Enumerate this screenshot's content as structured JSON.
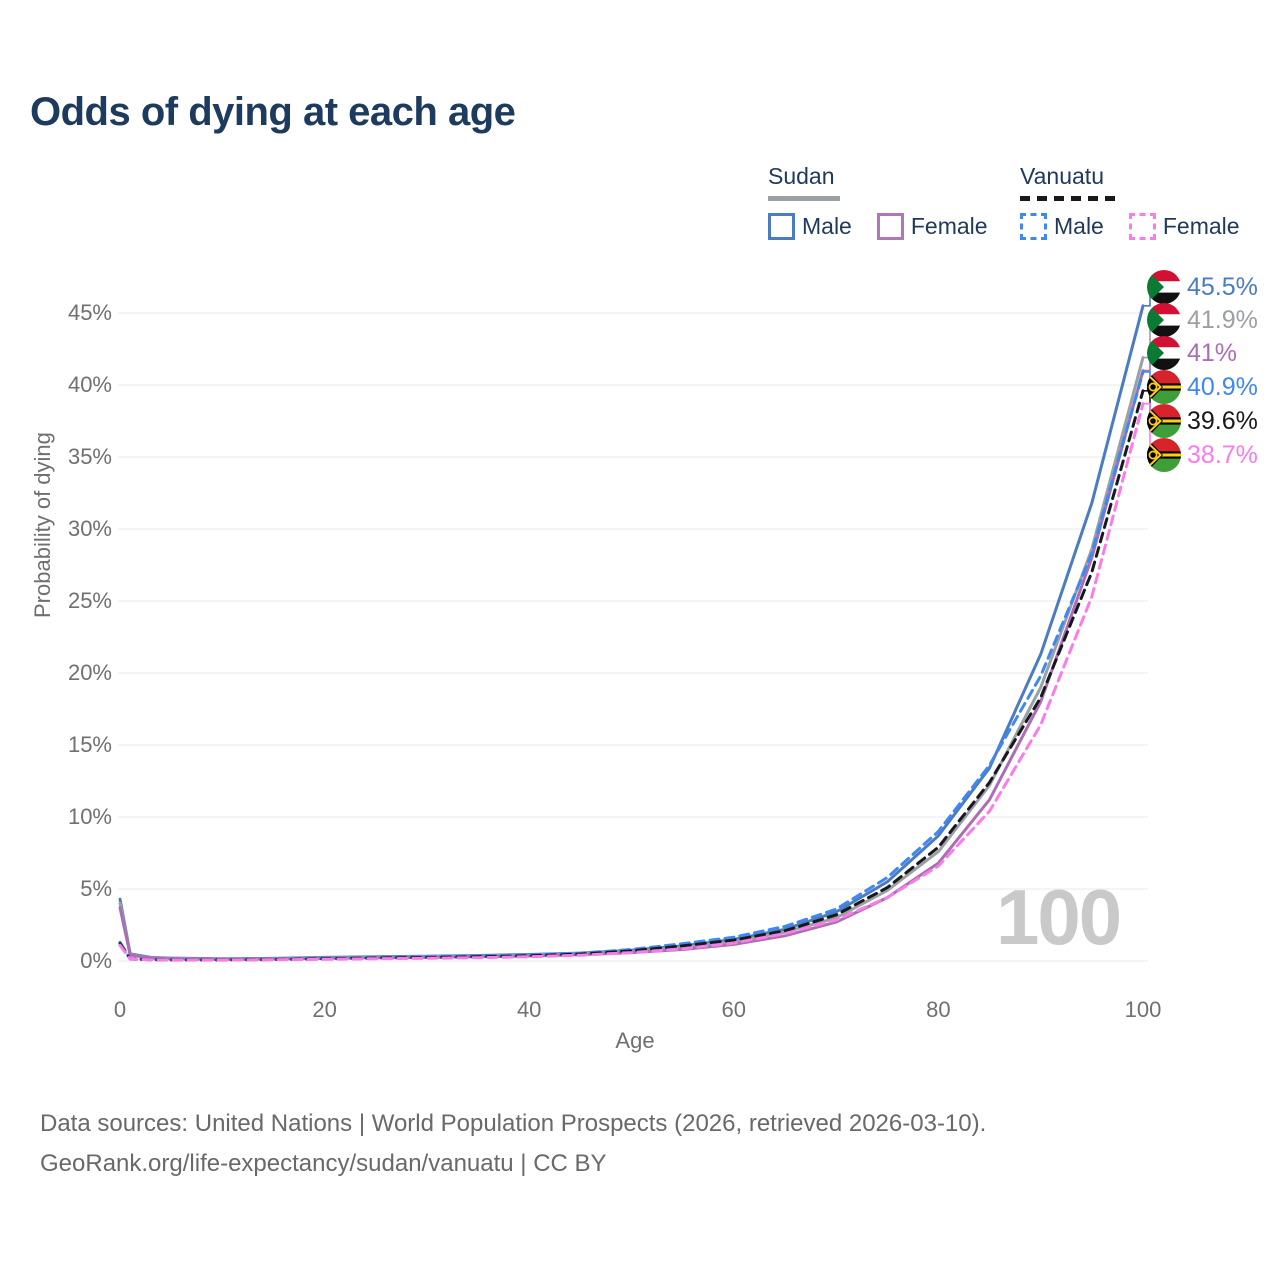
{
  "title": "Odds of dying at each age",
  "watermark": "100",
  "legend": {
    "groups": [
      {
        "name": "Sudan",
        "line_style": "solid",
        "underline_color": "#9aa0a6",
        "items": [
          {
            "label": "Male",
            "color": "#4b7bc0"
          },
          {
            "label": "Female",
            "color": "#b175ba"
          }
        ]
      },
      {
        "name": "Vanuatu",
        "line_style": "dashed",
        "underline_color": "#17191d",
        "items": [
          {
            "label": "Male",
            "color": "#3f88f2"
          },
          {
            "label": "Female",
            "color": "#f97ce8"
          }
        ]
      }
    ]
  },
  "footer": {
    "line1": "Data sources: United Nations | World Population Prospects (2026, retrieved 2026-03-10).",
    "line2": "GeoRank.org/life-expectancy/sudan/vanuatu | CC BY"
  },
  "chart_data": {
    "type": "line",
    "title": "Odds of dying at each age",
    "xlabel": "Age",
    "ylabel": "Probability of dying",
    "xlim": [
      0,
      100
    ],
    "ylim": [
      0,
      48
    ],
    "grid": "horizontal",
    "legend_position": "top-right",
    "xticks": [
      0,
      20,
      40,
      60,
      80,
      100
    ],
    "yticks": [
      0,
      5,
      10,
      15,
      20,
      25,
      30,
      35,
      40,
      45
    ],
    "ytick_labels": [
      "0%",
      "5%",
      "10%",
      "15%",
      "20%",
      "25%",
      "30%",
      "35%",
      "40%",
      "45%"
    ],
    "x_ages": [
      0,
      1,
      3,
      5,
      10,
      15,
      20,
      25,
      30,
      35,
      40,
      45,
      50,
      55,
      60,
      65,
      70,
      75,
      80,
      85,
      90,
      95,
      100
    ],
    "series": [
      {
        "key": "sudan-male",
        "name": "Sudan Male",
        "country": "Sudan",
        "sex": "Male",
        "color": "#4b7bc0",
        "dash": "solid",
        "flag": "sudan-flag",
        "end_label": "45.5%",
        "values": [
          4.3,
          0.5,
          0.25,
          0.2,
          0.15,
          0.18,
          0.25,
          0.3,
          0.33,
          0.38,
          0.45,
          0.55,
          0.75,
          1.05,
          1.5,
          2.2,
          3.4,
          5.5,
          8.7,
          13.4,
          21.3,
          31.8,
          45.5
        ]
      },
      {
        "key": "sudan",
        "name": "Sudan",
        "country": "Sudan",
        "sex": "Both",
        "color": "#9aa0a6",
        "dash": "solid",
        "flag": "sudan-flag",
        "end_label": "41.9%",
        "values": [
          4.0,
          0.45,
          0.22,
          0.18,
          0.13,
          0.16,
          0.21,
          0.26,
          0.29,
          0.33,
          0.4,
          0.5,
          0.66,
          0.92,
          1.35,
          2.0,
          3.0,
          4.9,
          7.6,
          12.2,
          19.0,
          28.6,
          41.9
        ]
      },
      {
        "key": "sudan-female",
        "name": "Sudan Female",
        "country": "Sudan",
        "sex": "Female",
        "color": "#ab6db4",
        "dash": "solid",
        "flag": "sudan-flag",
        "end_label": "41%",
        "values": [
          3.7,
          0.42,
          0.2,
          0.16,
          0.12,
          0.14,
          0.18,
          0.22,
          0.25,
          0.29,
          0.35,
          0.44,
          0.58,
          0.8,
          1.15,
          1.75,
          2.7,
          4.4,
          6.8,
          11.2,
          18.0,
          28.0,
          41.0
        ]
      },
      {
        "key": "vanuatu-male",
        "name": "Vanuatu Male",
        "country": "Vanuatu",
        "sex": "Male",
        "color": "#3f88f2",
        "dash": "dashed",
        "flag": "vanuatu-flag",
        "end_label": "40.9%",
        "values": [
          1.3,
          0.15,
          0.1,
          0.08,
          0.08,
          0.12,
          0.18,
          0.24,
          0.28,
          0.33,
          0.42,
          0.55,
          0.8,
          1.2,
          1.65,
          2.4,
          3.6,
          5.8,
          9.0,
          13.6,
          19.8,
          28.3,
          40.9
        ]
      },
      {
        "key": "vanuatu",
        "name": "Vanuatu",
        "country": "Vanuatu",
        "sex": "Both",
        "color": "#17191d",
        "dash": "dashed",
        "flag": "vanuatu-flag",
        "end_label": "39.6%",
        "values": [
          1.2,
          0.14,
          0.09,
          0.07,
          0.07,
          0.1,
          0.15,
          0.2,
          0.24,
          0.29,
          0.36,
          0.48,
          0.7,
          1.05,
          1.45,
          2.1,
          3.2,
          5.1,
          7.9,
          12.4,
          18.3,
          27.0,
          39.6
        ]
      },
      {
        "key": "vanuatu-female",
        "name": "Vanuatu Female",
        "country": "Vanuatu",
        "sex": "Female",
        "color": "#f97ce8",
        "dash": "dashed",
        "flag": "vanuatu-flag",
        "end_label": "38.7%",
        "values": [
          1.1,
          0.13,
          0.08,
          0.06,
          0.06,
          0.08,
          0.12,
          0.16,
          0.19,
          0.23,
          0.3,
          0.4,
          0.58,
          0.85,
          1.25,
          1.9,
          2.85,
          4.4,
          6.6,
          10.4,
          16.4,
          25.3,
          38.7
        ]
      }
    ]
  }
}
